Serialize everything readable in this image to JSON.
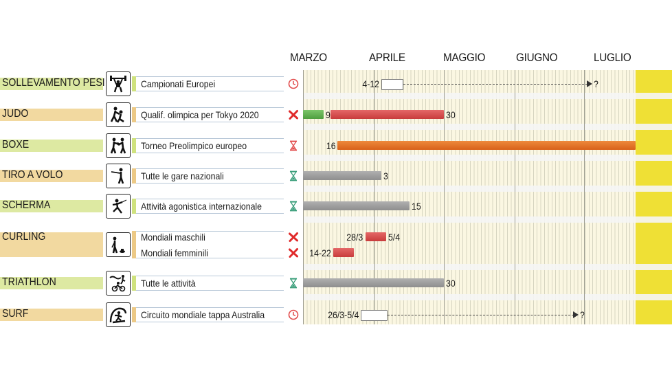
{
  "chart_data": {
    "type": "gantt",
    "months": [
      "MARZO",
      "APRILE",
      "MAGGIO",
      "GIUGNO",
      "LUGLIO"
    ],
    "status_legend": {
      "clock": "postponed / to be defined",
      "cross": "cancelled",
      "hourglass_red": "suspended",
      "hourglass_green": "suspended"
    },
    "rows": [
      {
        "sport": "SOLLEVAMENTO PESI",
        "icon": "weightlifting-icon",
        "events": [
          {
            "label": "Campionati Europei",
            "status": "clock",
            "segments": [
              {
                "style": "outline",
                "start": "04-04",
                "end": "04-12",
                "label_left": "4-12"
              }
            ],
            "arrow_to": "07-05",
            "arrow_label": "?"
          }
        ]
      },
      {
        "sport": "JUDO",
        "icon": "judo-icon",
        "events": [
          {
            "label": "Qualif. olimpica per Tokyo 2020",
            "status": "cross",
            "segments": [
              {
                "style": "green",
                "start": "03-01",
                "end": "03-09",
                "label_right": "9"
              },
              {
                "style": "red",
                "start": "03-13",
                "end": "04-30",
                "label_right": "30"
              }
            ]
          }
        ]
      },
      {
        "sport": "BOXE",
        "icon": "boxing-icon",
        "events": [
          {
            "label": "Torneo Preolimpico europeo",
            "status": "hourglass_red",
            "segments": [
              {
                "style": "orange",
                "start": "03-16",
                "end": "07-31",
                "label_left": "16"
              }
            ]
          }
        ]
      },
      {
        "sport": "TIRO A VOLO",
        "icon": "shooting-icon",
        "events": [
          {
            "label": "Tutte le gare nazionali",
            "status": "hourglass_green",
            "segments": [
              {
                "style": "gray",
                "start": "03-01",
                "end": "04-03",
                "label_right": "3"
              }
            ]
          }
        ]
      },
      {
        "sport": "SCHERMA",
        "icon": "fencing-icon",
        "events": [
          {
            "label": "Attività agonistica internazionale",
            "status": "hourglass_green",
            "segments": [
              {
                "style": "gray",
                "start": "03-01",
                "end": "04-15",
                "label_right": "15"
              }
            ]
          }
        ]
      },
      {
        "sport": "CURLING",
        "icon": "curling-icon",
        "events": [
          {
            "label": "Mondiali maschili",
            "status": "cross",
            "segments": [
              {
                "style": "red",
                "start": "03-28",
                "end": "04-05",
                "label_left": "28/3",
                "label_right": "5/4"
              }
            ]
          },
          {
            "label": "Mondiali femminili",
            "status": "cross",
            "segments": [
              {
                "style": "red",
                "start": "03-14",
                "end": "03-22",
                "label_left": "14-22"
              }
            ]
          }
        ]
      },
      {
        "sport": "TRIATHLON",
        "icon": "triathlon-icon",
        "events": [
          {
            "label": "Tutte le attività",
            "status": "hourglass_green",
            "segments": [
              {
                "style": "gray",
                "start": "03-01",
                "end": "04-30",
                "label_right": "30"
              }
            ]
          }
        ]
      },
      {
        "sport": "SURF",
        "icon": "surfing-icon",
        "events": [
          {
            "label": "Circuito mondiale tappa Australia",
            "status": "clock",
            "segments": [
              {
                "style": "outline",
                "start": "03-26",
                "end": "04-05",
                "label_left": "26/3-5/4"
              }
            ],
            "arrow_to": "06-28",
            "arrow_label": "?"
          }
        ]
      }
    ]
  },
  "colors": {
    "green_row": "#dde9a2",
    "tan_row": "#f2d9a0",
    "gray_bar": "#9e9e9e",
    "red_bar": "#d64a4a",
    "green_bar": "#5aab48",
    "orange_bar": "#e2702a",
    "clock": "#e24d4d",
    "cross": "#e02b2b",
    "hourglass_red": "#e24d4d",
    "hourglass_green": "#3a9e7a"
  }
}
